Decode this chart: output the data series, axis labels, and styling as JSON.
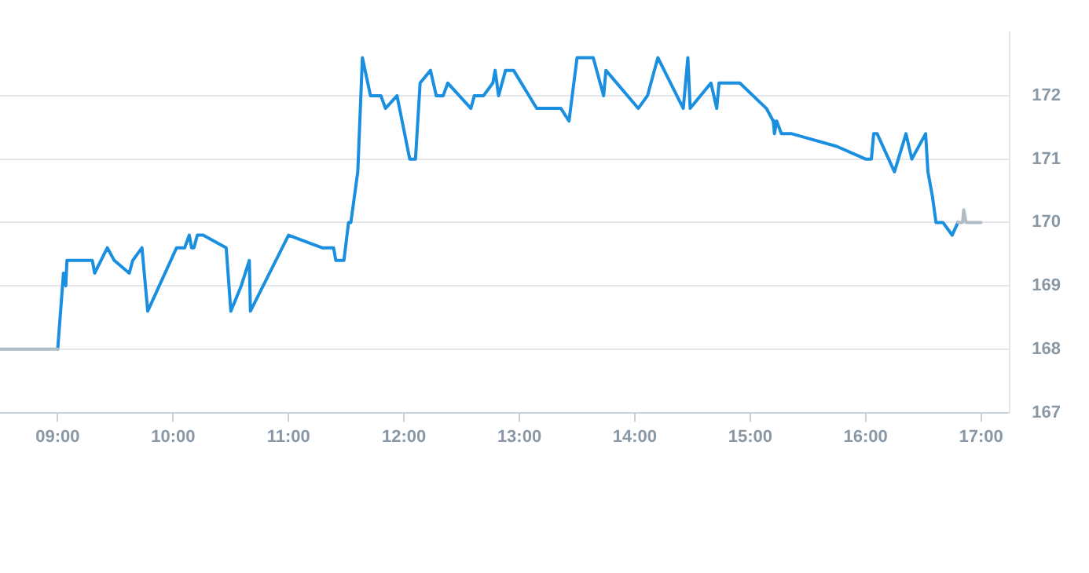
{
  "chart_data": {
    "type": "line",
    "xlim": [
      8.5,
      17.25
    ],
    "ylim": [
      167,
      173
    ],
    "xticks": [
      {
        "value": 9,
        "label": "09:00"
      },
      {
        "value": 10,
        "label": "10:00"
      },
      {
        "value": 11,
        "label": "11:00"
      },
      {
        "value": 12,
        "label": "12:00"
      },
      {
        "value": 13,
        "label": "13:00"
      },
      {
        "value": 14,
        "label": "14:00"
      },
      {
        "value": 15,
        "label": "15:00"
      },
      {
        "value": 16,
        "label": "16:00"
      },
      {
        "value": 17,
        "label": "17:00"
      }
    ],
    "yticks": [
      167,
      168,
      169,
      170,
      171,
      172
    ],
    "grid": "y",
    "marker": "none",
    "line_style": "solid",
    "series": [
      {
        "color": "#b0bcc6",
        "x": [
          8.5,
          9.0
        ],
        "values": [
          168.0,
          168.0
        ]
      },
      {
        "color": "#b0bcc6",
        "x": [
          16.8,
          16.84,
          16.85,
          16.87,
          17.0
        ],
        "values": [
          170.0,
          170.0,
          170.2,
          170.0,
          170.0
        ]
      },
      {
        "color": "#1a8fe0",
        "x": [
          9.0,
          9.05,
          9.07,
          9.08,
          9.3,
          9.32,
          9.43,
          9.49,
          9.62,
          9.65,
          9.73,
          9.78,
          10.03,
          10.1,
          10.14,
          10.16,
          10.18,
          10.21,
          10.26,
          10.46,
          10.5,
          10.59,
          10.66,
          10.67,
          11.0,
          11.29,
          11.39,
          11.41,
          11.48,
          11.52,
          11.54,
          11.6,
          11.64,
          11.71,
          11.8,
          11.84,
          11.94,
          12.05,
          12.1,
          12.14,
          12.23,
          12.28,
          12.34,
          12.38,
          12.58,
          12.61,
          12.69,
          12.77,
          12.79,
          12.82,
          12.88,
          12.95,
          13.15,
          13.36,
          13.43,
          13.5,
          13.64,
          13.73,
          13.75,
          14.03,
          14.11,
          14.2,
          14.42,
          14.46,
          14.48,
          14.66,
          14.71,
          14.73,
          14.91,
          15.14,
          15.2,
          15.21,
          15.23,
          15.27,
          15.36,
          15.75,
          16.0,
          16.05,
          16.07,
          16.1,
          16.25,
          16.35,
          16.4,
          16.52,
          16.54,
          16.58,
          16.61,
          16.67,
          16.75,
          16.8
        ],
        "values": [
          168.0,
          169.2,
          169.0,
          169.4,
          169.4,
          169.2,
          169.6,
          169.4,
          169.2,
          169.4,
          169.6,
          168.6,
          169.6,
          169.6,
          169.8,
          169.6,
          169.6,
          169.8,
          169.8,
          169.6,
          168.6,
          169.0,
          169.4,
          168.6,
          169.8,
          169.6,
          169.6,
          169.4,
          169.4,
          170.0,
          170.0,
          170.8,
          172.6,
          172.0,
          172.0,
          171.8,
          172.0,
          171.0,
          171.0,
          172.2,
          172.4,
          172.0,
          172.0,
          172.2,
          171.8,
          172.0,
          172.0,
          172.2,
          172.4,
          172.0,
          172.4,
          172.4,
          171.8,
          171.8,
          171.6,
          172.6,
          172.6,
          172.0,
          172.4,
          171.8,
          172.0,
          172.6,
          171.8,
          172.6,
          171.8,
          172.2,
          171.8,
          172.2,
          172.2,
          171.8,
          171.6,
          171.4,
          171.6,
          171.4,
          171.4,
          171.2,
          171.0,
          171.0,
          171.4,
          171.4,
          170.8,
          171.4,
          171.0,
          171.4,
          170.8,
          170.4,
          170.0,
          170.0,
          169.8,
          170.0
        ]
      }
    ]
  }
}
